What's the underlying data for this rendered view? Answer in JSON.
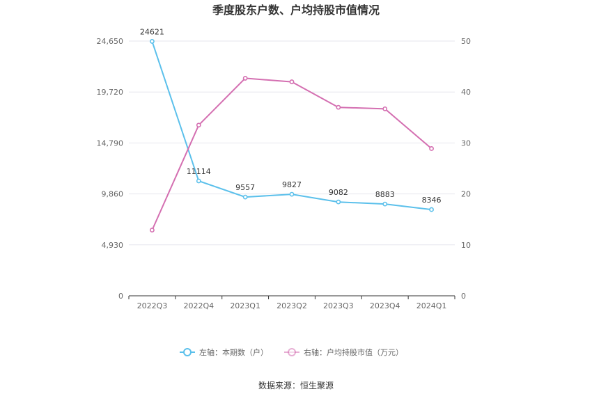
{
  "chart_data": {
    "type": "line",
    "title": "季度股东户数、户均持股市值情况",
    "categories": [
      "2022Q3",
      "2022Q4",
      "2023Q1",
      "2023Q2",
      "2023Q3",
      "2023Q4",
      "2024Q1"
    ],
    "left_axis": {
      "ylim": [
        0,
        24650
      ],
      "ticks": [
        "0",
        "4,930",
        "9,860",
        "14,790",
        "19,720",
        "24,650"
      ],
      "tick_values": [
        0,
        4930,
        9860,
        14790,
        19720,
        24650
      ]
    },
    "right_axis": {
      "ylim": [
        0,
        50
      ],
      "ticks": [
        "0",
        "10",
        "20",
        "30",
        "40",
        "50"
      ],
      "tick_values": [
        0,
        10,
        20,
        30,
        40,
        50
      ]
    },
    "series": [
      {
        "name": "左轴：本期数（户）",
        "axis": "left",
        "color": "#5bc0eb",
        "values": [
          24621,
          11114,
          9557,
          9827,
          9082,
          8883,
          8346
        ],
        "labels": [
          "24621",
          "11114",
          "9557",
          "9827",
          "9082",
          "8883",
          "8346"
        ]
      },
      {
        "name": "右轴：户均持股市值（万元）",
        "axis": "right",
        "color": "#d46fb1",
        "values": [
          12.9,
          33.5,
          42.7,
          42.0,
          37.0,
          36.7,
          28.9
        ]
      }
    ],
    "grid": true,
    "legend_position": "bottom"
  },
  "footer": {
    "source": "数据来源：恒生聚源"
  }
}
